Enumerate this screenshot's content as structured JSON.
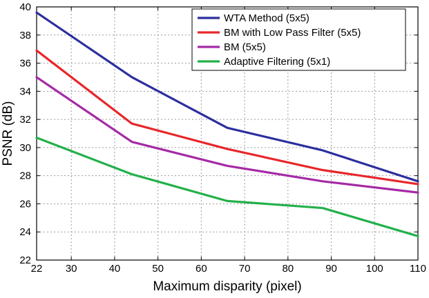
{
  "chart_data": {
    "type": "line",
    "xlabel": "Maximum disparity (pixel)",
    "ylabel": "PSNR (dB)",
    "xlim": [
      22,
      110
    ],
    "ylim": [
      22,
      40
    ],
    "x_ticks": [
      22,
      30,
      40,
      50,
      60,
      70,
      80,
      90,
      100,
      110
    ],
    "y_ticks": [
      22,
      24,
      26,
      28,
      30,
      32,
      34,
      36,
      38,
      40
    ],
    "grid": true,
    "legend_position": "top-right",
    "x": [
      22,
      44,
      66,
      88,
      110
    ],
    "series": [
      {
        "name": "WTA Method (5x5)",
        "color": "#2b2f9e",
        "values": [
          39.6,
          35.0,
          31.4,
          29.8,
          27.6
        ]
      },
      {
        "name": "BM with Low Pass Filter (5x5)",
        "color": "#e8262a",
        "values": [
          36.9,
          31.7,
          29.9,
          28.4,
          27.4
        ]
      },
      {
        "name": "BM (5x5)",
        "color": "#a52aa5",
        "values": [
          35.0,
          30.4,
          28.7,
          27.6,
          26.8
        ]
      },
      {
        "name": "Adaptive Filtering (5x1)",
        "color": "#22b04a",
        "values": [
          30.7,
          28.1,
          26.2,
          25.7,
          23.7
        ]
      }
    ]
  }
}
